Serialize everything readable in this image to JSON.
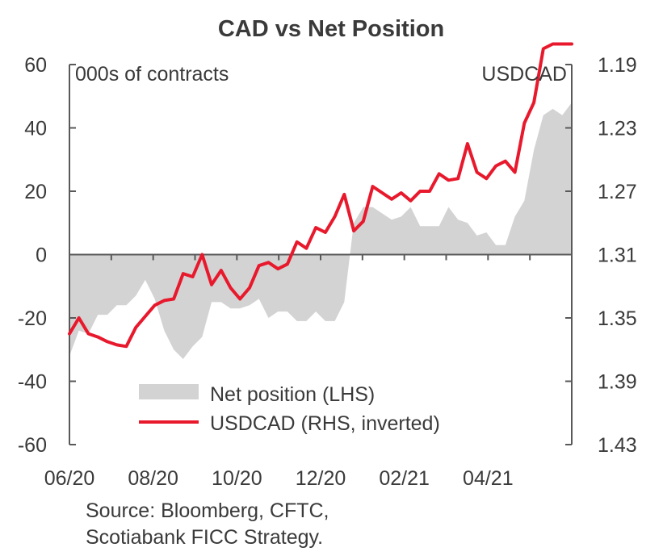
{
  "chart_data": {
    "type": "area+line",
    "title": "CAD vs Net Position",
    "left_axis_unit": "000s of contracts",
    "right_axis_unit": "USDCAD",
    "left_ylim": [
      -60,
      60
    ],
    "left_ticks": [
      "60",
      "40",
      "20",
      "0",
      "-20",
      "-40",
      "-60"
    ],
    "left_tick_values": [
      60,
      40,
      20,
      0,
      -20,
      -40,
      -60
    ],
    "right_ylim_inverted": [
      1.19,
      1.43
    ],
    "right_ticks": [
      "1.19",
      "1.23",
      "1.27",
      "1.31",
      "1.35",
      "1.39",
      "1.43"
    ],
    "right_tick_values": [
      1.19,
      1.23,
      1.27,
      1.31,
      1.35,
      1.39,
      1.43
    ],
    "x_labels": [
      "06/20",
      "08/20",
      "10/20",
      "12/20",
      "02/21",
      "04/21"
    ],
    "grid": false,
    "legend_position": "bottom-center",
    "series": [
      {
        "name": "Net position (LHS)",
        "kind": "area",
        "color": "#d3d3d3",
        "values": [
          -32,
          -24,
          -25,
          -19,
          -19,
          -16,
          -16,
          -13,
          -8,
          -14,
          -24,
          -30,
          -33,
          -29,
          -26,
          -15,
          -15,
          -17,
          -17,
          -16,
          -14,
          -20,
          -18,
          -18,
          -21,
          -21,
          -18,
          -21,
          -21,
          -15,
          10,
          15,
          15,
          13,
          11,
          12,
          15,
          9,
          9,
          9,
          15,
          11,
          10,
          6,
          7,
          3,
          3,
          12,
          17,
          33,
          44,
          46,
          44,
          48
        ]
      },
      {
        "name": "USDCAD (RHS, inverted)",
        "kind": "line",
        "color": "#e8192c",
        "values": [
          1.36,
          1.35,
          1.36,
          1.362,
          1.365,
          1.367,
          1.368,
          1.356,
          1.349,
          1.342,
          1.339,
          1.338,
          1.322,
          1.324,
          1.31,
          1.329,
          1.32,
          1.331,
          1.338,
          1.331,
          1.317,
          1.315,
          1.319,
          1.316,
          1.302,
          1.306,
          1.293,
          1.296,
          1.286,
          1.272,
          1.295,
          1.289,
          1.267,
          1.271,
          1.275,
          1.271,
          1.276,
          1.27,
          1.27,
          1.259,
          1.263,
          1.262,
          1.24,
          1.258,
          1.262,
          1.254,
          1.251,
          1.258,
          1.227,
          1.214,
          1.18,
          1.177,
          1.177,
          1.177
        ]
      }
    ],
    "source": [
      "Source: Bloomberg, CFTC,",
      "Scotiabank FICC  Strategy."
    ]
  }
}
